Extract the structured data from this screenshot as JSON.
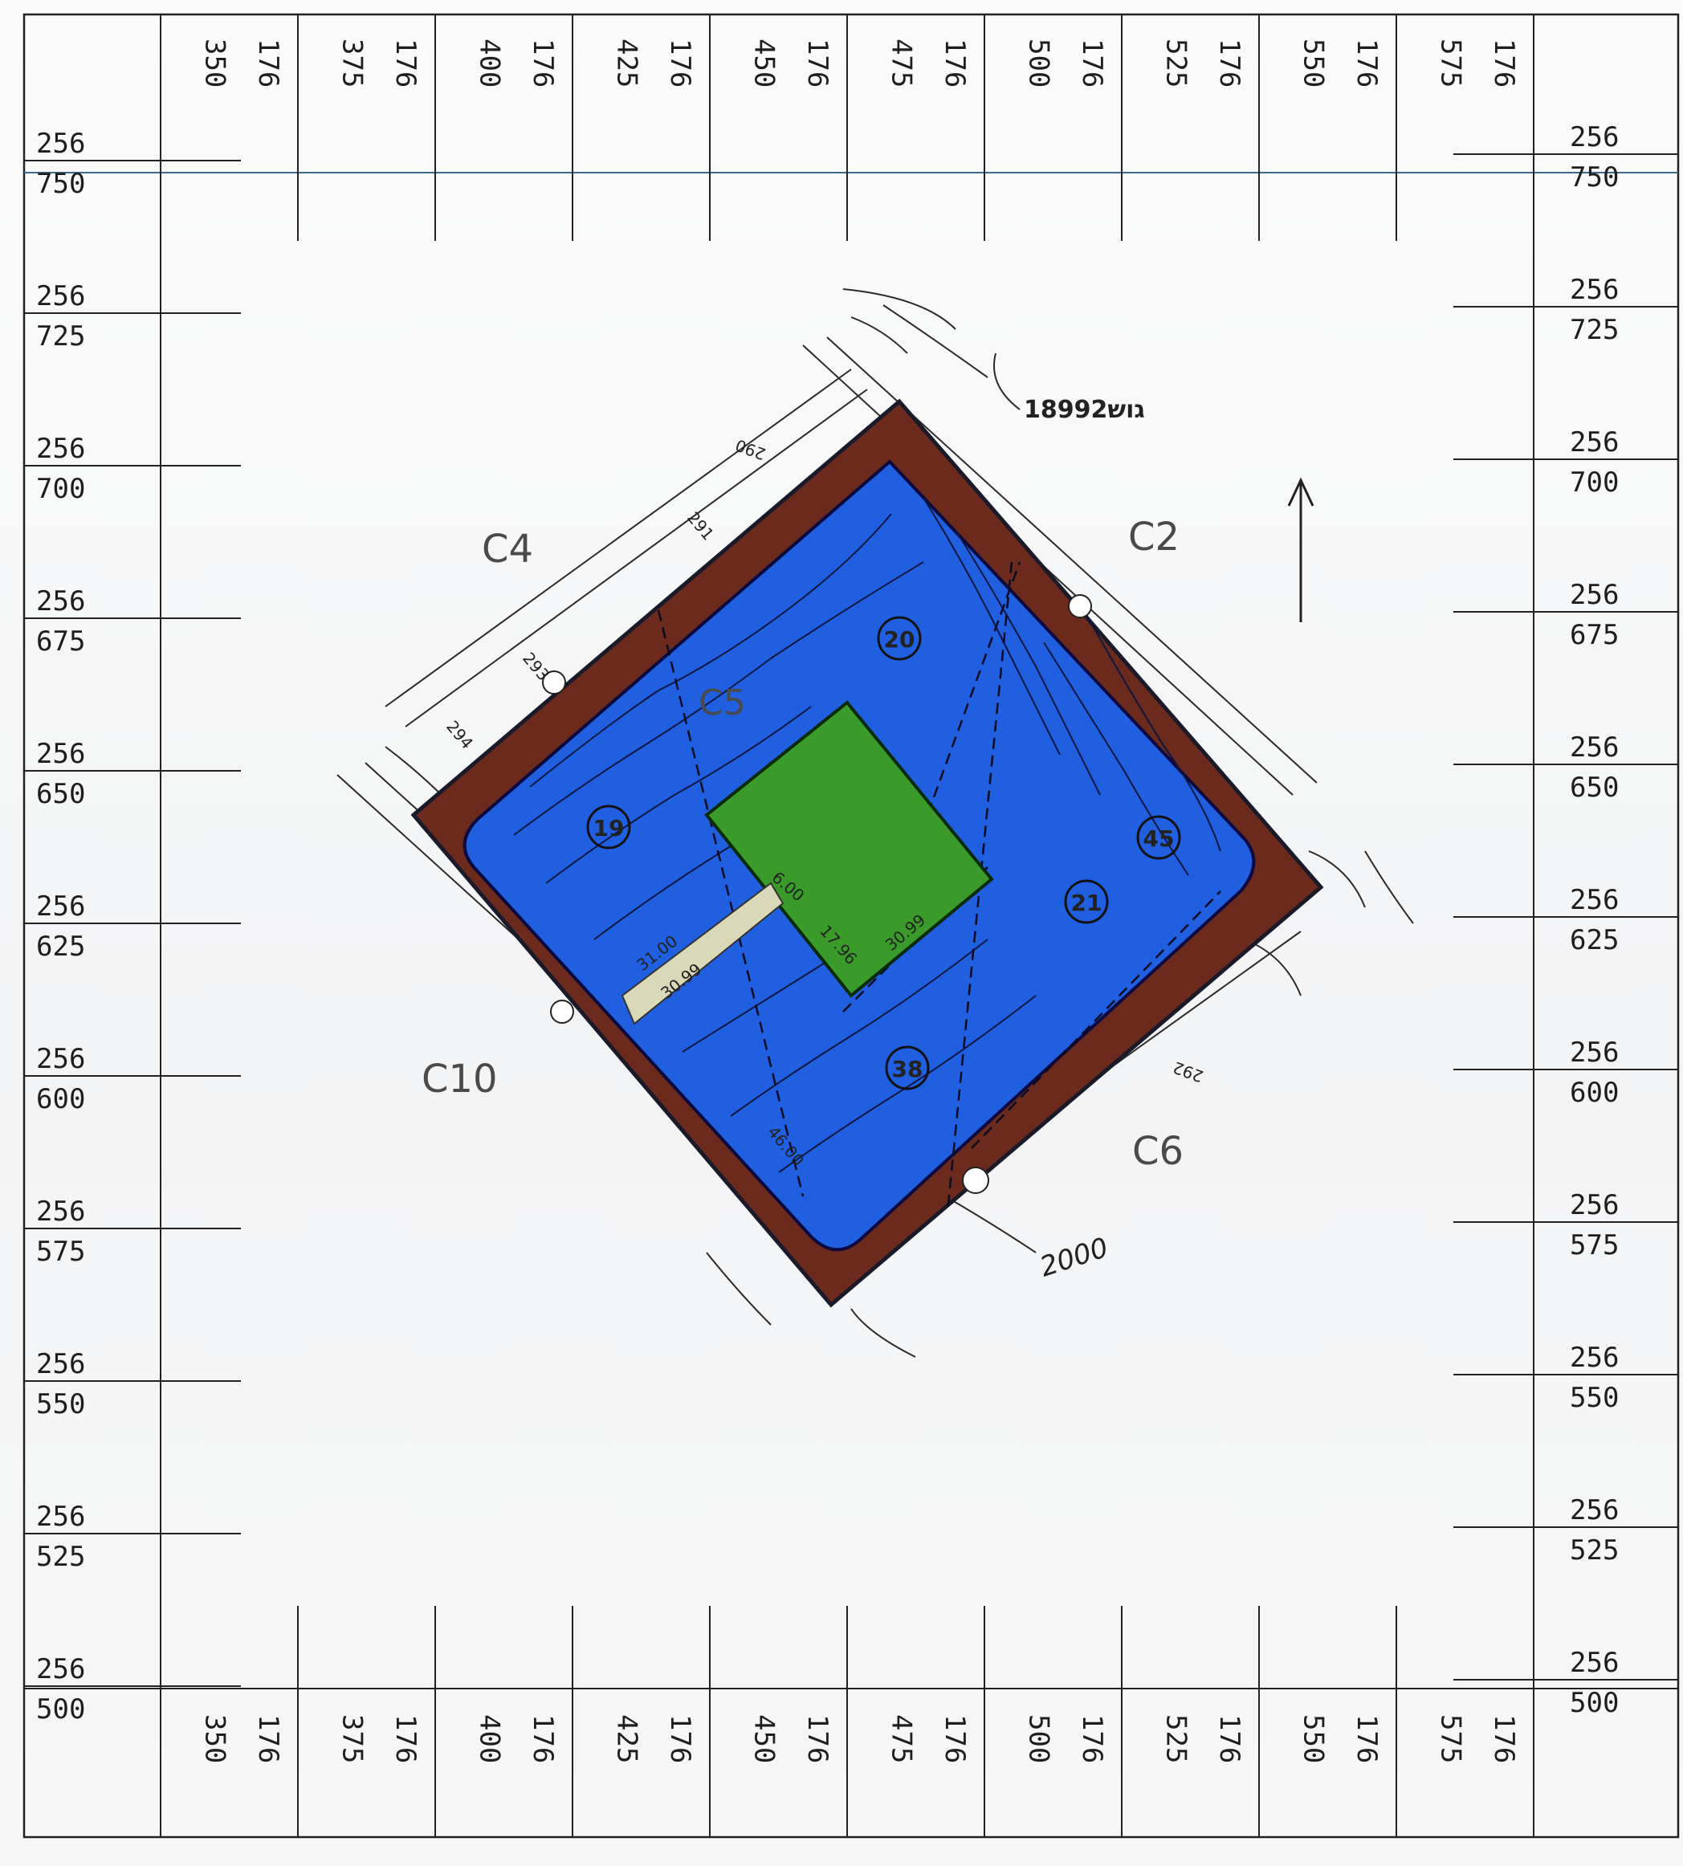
{
  "grid": {
    "top_bottom_labels": [
      {
        "main": "350",
        "prefix": "176"
      },
      {
        "main": "375",
        "prefix": "176"
      },
      {
        "main": "400",
        "prefix": "176"
      },
      {
        "main": "425",
        "prefix": "176"
      },
      {
        "main": "450",
        "prefix": "176"
      },
      {
        "main": "475",
        "prefix": "176"
      },
      {
        "main": "500",
        "prefix": "176"
      },
      {
        "main": "525",
        "prefix": "176"
      },
      {
        "main": "550",
        "prefix": "176"
      },
      {
        "main": "575",
        "prefix": "176"
      }
    ],
    "side_labels": [
      {
        "prefix": "256",
        "main": "750"
      },
      {
        "prefix": "256",
        "main": "725"
      },
      {
        "prefix": "256",
        "main": "700"
      },
      {
        "prefix": "256",
        "main": "675"
      },
      {
        "prefix": "256",
        "main": "650"
      },
      {
        "prefix": "256",
        "main": "625"
      },
      {
        "prefix": "256",
        "main": "600"
      },
      {
        "prefix": "256",
        "main": "575"
      },
      {
        "prefix": "256",
        "main": "550"
      },
      {
        "prefix": "256",
        "main": "525"
      },
      {
        "prefix": "256",
        "main": "500"
      }
    ]
  },
  "block_labels": {
    "c4": "C4",
    "c2": "C2",
    "c10": "C10",
    "c6": "C6",
    "c5": "C5",
    "gush": "18992גוש"
  },
  "plots": {
    "p19": "19",
    "p20": "20",
    "p21": "21",
    "p38": "38",
    "p45": "45"
  },
  "annotations": {
    "handwritten_2000": "2000",
    "dim_31": "31.00",
    "dim_30_99": "30.99",
    "dim_6": "6.00",
    "dim_17": "17.96",
    "dim_30_99b": "30.99",
    "dim_46": "46.00",
    "contour_293": "293",
    "contour_294": "294",
    "contour_291": "291",
    "contour_292": "292",
    "contour_290": "290"
  },
  "colors": {
    "border_brown": "#6b2a1c",
    "plot_blue": "#1f5fe0",
    "building_green": "#3a9a2a",
    "line_dark": "#1a1a1a"
  }
}
